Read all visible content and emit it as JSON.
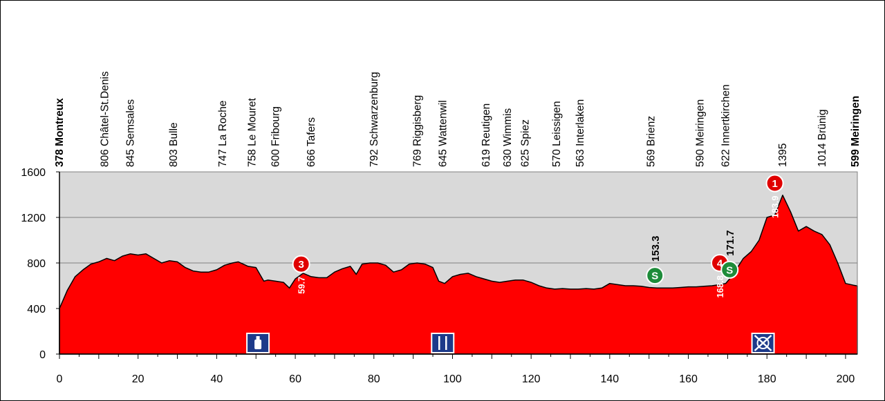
{
  "chart_data": {
    "type": "area",
    "title": "",
    "xlabel": "",
    "ylabel": "",
    "xlim": [
      0,
      203
    ],
    "ylim": [
      0,
      1600
    ],
    "x_ticks": [
      0,
      20,
      40,
      60,
      80,
      100,
      120,
      140,
      160,
      180,
      200
    ],
    "y_ticks": [
      0,
      400,
      800,
      1200,
      1600
    ],
    "grid": true,
    "colors": {
      "fill": "#ff0000",
      "plot_bg": "#d9d9d9",
      "stroke": "#000000",
      "sprint": "#1e8c3a",
      "climb": "#e00000",
      "feed": "#1d3a8a"
    },
    "series": [
      {
        "x": [
          0,
          2,
          4,
          6,
          8,
          10,
          12,
          14,
          16,
          18,
          20,
          22,
          24,
          26,
          28,
          30,
          32,
          34,
          36,
          38,
          40,
          42,
          44,
          45.5,
          48,
          50,
          52,
          53,
          55,
          57,
          58.5,
          60,
          62,
          64,
          66,
          68,
          70,
          72,
          74,
          75.5,
          77,
          79,
          81,
          83,
          85,
          87,
          89,
          91,
          93,
          95,
          96.5,
          98,
          100,
          102,
          104,
          106,
          108,
          110,
          112,
          114,
          116,
          118,
          120,
          122,
          124,
          126,
          128,
          130,
          132,
          134,
          136,
          138,
          140,
          142,
          144,
          146,
          148,
          150,
          152,
          154,
          156,
          158,
          160,
          162,
          164,
          166,
          168,
          169.5,
          171,
          172.5,
          174,
          176,
          178,
          180,
          182,
          184,
          186,
          188,
          190,
          192,
          194,
          196,
          198,
          200,
          202,
          203
        ],
        "values": [
          400,
          560,
          680,
          740,
          790,
          810,
          840,
          820,
          860,
          880,
          870,
          880,
          840,
          800,
          820,
          810,
          760,
          730,
          720,
          720,
          740,
          780,
          800,
          810,
          770,
          760,
          640,
          650,
          640,
          630,
          580,
          660,
          710,
          680,
          670,
          670,
          720,
          750,
          770,
          700,
          790,
          800,
          800,
          780,
          720,
          740,
          790,
          800,
          790,
          760,
          640,
          620,
          680,
          700,
          710,
          680,
          660,
          640,
          630,
          640,
          650,
          650,
          630,
          600,
          580,
          570,
          575,
          570,
          570,
          575,
          570,
          580,
          620,
          610,
          600,
          600,
          595,
          585,
          580,
          580,
          580,
          585,
          590,
          590,
          595,
          600,
          610,
          620,
          680,
          760,
          840,
          900,
          1000,
          1200,
          1220,
          1395,
          1250,
          1080,
          1120,
          1080,
          1050,
          960,
          800,
          620,
          605,
          599
        ]
      }
    ],
    "places": [
      {
        "km": 0,
        "label": "378 Montreux",
        "bold": true
      },
      {
        "km": 11.5,
        "label": "806 Châtel-St.Denis",
        "bold": false
      },
      {
        "km": 18,
        "label": "845 Semsales",
        "bold": false
      },
      {
        "km": 29,
        "label": "803 Bulle",
        "bold": false
      },
      {
        "km": 41.5,
        "label": "747 La Roche",
        "bold": false
      },
      {
        "km": 49,
        "label": "758 Le Mouret",
        "bold": false
      },
      {
        "km": 55,
        "label": "600 Fribourg",
        "bold": false
      },
      {
        "km": 64,
        "label": "666 Tafers",
        "bold": false
      },
      {
        "km": 80,
        "label": "792 Schwarzenburg",
        "bold": false
      },
      {
        "km": 91,
        "label": "769 Riggisberg",
        "bold": false
      },
      {
        "km": 97.5,
        "label": "645 Wattenwil",
        "bold": false
      },
      {
        "km": 108.5,
        "label": "619 Reutigen",
        "bold": false
      },
      {
        "km": 114,
        "label": "630 Wimmis",
        "bold": false
      },
      {
        "km": 118.5,
        "label": "625 Spiez",
        "bold": false
      },
      {
        "km": 126.5,
        "label": "570 Leissigen",
        "bold": false
      },
      {
        "km": 132.5,
        "label": "563 Interlaken",
        "bold": false
      },
      {
        "km": 150.5,
        "label": "569 Brienz",
        "bold": false
      },
      {
        "km": 163,
        "label": "590 Meiringen",
        "bold": false
      },
      {
        "km": 169.5,
        "label": "622 Innertkirchen",
        "bold": false
      },
      {
        "km": 184,
        "label": "1395",
        "bold": false
      },
      {
        "km": 194,
        "label": "1014 Brünig",
        "bold": false
      },
      {
        "km": 202.5,
        "label": "599 Meiringen",
        "bold": true
      }
    ],
    "markers": [
      {
        "type": "climb",
        "text": "3",
        "km": 61.5,
        "elev": 790,
        "km_label": "59.7",
        "label_style": "white"
      },
      {
        "type": "climb",
        "text": "4",
        "km": 168,
        "elev": 800,
        "km_label": "168.8",
        "label_style": "white"
      },
      {
        "type": "climb",
        "text": "1",
        "km": 182,
        "elev": 1500,
        "km_label": "183.9",
        "label_style": "white"
      },
      {
        "type": "sprint",
        "text": "S",
        "km": 151.5,
        "elev": 690,
        "km_label": "153.3",
        "label_style": "black"
      },
      {
        "type": "sprint",
        "text": "S",
        "km": 170.5,
        "elev": 740,
        "km_label": "171.7",
        "label_style": "black"
      }
    ],
    "feed_icons": [
      {
        "kind": "bottle",
        "km": 50.5
      },
      {
        "kind": "food",
        "km": 97.5
      },
      {
        "kind": "no-bottle",
        "km": 179
      }
    ]
  }
}
